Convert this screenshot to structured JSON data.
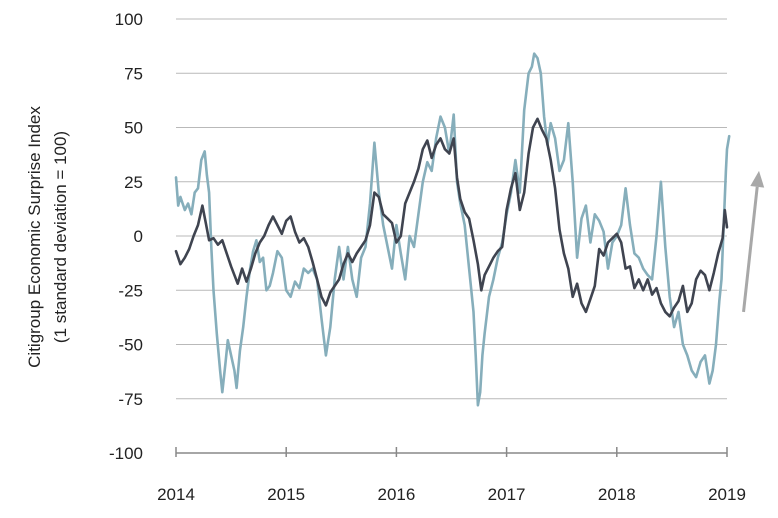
{
  "chart_data": {
    "type": "line",
    "ylabel_line1": "Citigroup Economic Surprise Index",
    "ylabel_line2": "(1 standard deviation = 100)",
    "ylim": [
      -100,
      100
    ],
    "xlim": [
      2014,
      2019
    ],
    "y_ticks": [
      {
        "v": 100,
        "label": "100"
      },
      {
        "v": 75,
        "label": "75"
      },
      {
        "v": 50,
        "label": "50"
      },
      {
        "v": 25,
        "label": "25"
      },
      {
        "v": 0,
        "label": "0"
      },
      {
        "v": -25,
        "label": "-25"
      },
      {
        "v": -50,
        "label": "-50"
      },
      {
        "v": -75,
        "label": "-75"
      },
      {
        "v": -100,
        "label": "-100"
      }
    ],
    "x_ticks": [
      {
        "v": 2014,
        "label": "2014"
      },
      {
        "v": 2015,
        "label": "2015"
      },
      {
        "v": 2016,
        "label": "2016"
      },
      {
        "v": 2017,
        "label": "2017"
      },
      {
        "v": 2018,
        "label": "2018"
      },
      {
        "v": 2019,
        "label": "2019"
      }
    ],
    "grid": "horizontal",
    "colors": {
      "series_dark": "#3f4450",
      "series_light": "#86aebb",
      "arrow": "#a8a8a8",
      "grid": "#b9b9b9",
      "axis": "#888888"
    },
    "arrow": {
      "from": [
        2019.15,
        -35
      ],
      "to": [
        2019.29,
        30
      ]
    },
    "series": [
      {
        "color": "#3f4450",
        "points": [
          [
            2014.0,
            -7
          ],
          [
            2014.04,
            -13
          ],
          [
            2014.08,
            -10
          ],
          [
            2014.12,
            -6
          ],
          [
            2014.16,
            0
          ],
          [
            2014.2,
            5
          ],
          [
            2014.24,
            14
          ],
          [
            2014.27,
            6
          ],
          [
            2014.3,
            -2
          ],
          [
            2014.34,
            -1
          ],
          [
            2014.38,
            -4
          ],
          [
            2014.42,
            -2
          ],
          [
            2014.46,
            -8
          ],
          [
            2014.5,
            -14
          ],
          [
            2014.53,
            -18
          ],
          [
            2014.56,
            -22
          ],
          [
            2014.6,
            -15
          ],
          [
            2014.64,
            -21
          ],
          [
            2014.68,
            -15
          ],
          [
            2014.72,
            -8
          ],
          [
            2014.76,
            -3
          ],
          [
            2014.8,
            0
          ],
          [
            2014.84,
            5
          ],
          [
            2014.88,
            9
          ],
          [
            2014.92,
            5
          ],
          [
            2014.96,
            1
          ],
          [
            2015.0,
            7
          ],
          [
            2015.04,
            9
          ],
          [
            2015.08,
            2
          ],
          [
            2015.12,
            -3
          ],
          [
            2015.16,
            -1
          ],
          [
            2015.2,
            -5
          ],
          [
            2015.24,
            -12
          ],
          [
            2015.28,
            -20
          ],
          [
            2015.32,
            -28
          ],
          [
            2015.36,
            -32
          ],
          [
            2015.4,
            -26
          ],
          [
            2015.44,
            -23
          ],
          [
            2015.48,
            -20
          ],
          [
            2015.52,
            -13
          ],
          [
            2015.56,
            -8
          ],
          [
            2015.6,
            -12
          ],
          [
            2015.64,
            -8
          ],
          [
            2015.68,
            -5
          ],
          [
            2015.72,
            -2
          ],
          [
            2015.76,
            5
          ],
          [
            2015.8,
            20
          ],
          [
            2015.84,
            18
          ],
          [
            2015.88,
            10
          ],
          [
            2015.92,
            8
          ],
          [
            2015.96,
            6
          ],
          [
            2016.0,
            -3
          ],
          [
            2016.04,
            0
          ],
          [
            2016.08,
            15
          ],
          [
            2016.12,
            20
          ],
          [
            2016.16,
            25
          ],
          [
            2016.2,
            31
          ],
          [
            2016.24,
            40
          ],
          [
            2016.28,
            44
          ],
          [
            2016.32,
            36
          ],
          [
            2016.36,
            42
          ],
          [
            2016.4,
            45
          ],
          [
            2016.44,
            40
          ],
          [
            2016.48,
            38
          ],
          [
            2016.52,
            45
          ],
          [
            2016.55,
            27
          ],
          [
            2016.58,
            17
          ],
          [
            2016.62,
            11
          ],
          [
            2016.66,
            8
          ],
          [
            2016.7,
            -2
          ],
          [
            2016.74,
            -13
          ],
          [
            2016.77,
            -25
          ],
          [
            2016.8,
            -18
          ],
          [
            2016.84,
            -14
          ],
          [
            2016.88,
            -10
          ],
          [
            2016.92,
            -7
          ],
          [
            2016.96,
            -5
          ],
          [
            2017.0,
            12
          ],
          [
            2017.04,
            22
          ],
          [
            2017.08,
            29
          ],
          [
            2017.12,
            12
          ],
          [
            2017.16,
            20
          ],
          [
            2017.2,
            38
          ],
          [
            2017.24,
            50
          ],
          [
            2017.28,
            54
          ],
          [
            2017.32,
            49
          ],
          [
            2017.36,
            45
          ],
          [
            2017.4,
            35
          ],
          [
            2017.44,
            22
          ],
          [
            2017.48,
            3
          ],
          [
            2017.52,
            -8
          ],
          [
            2017.56,
            -15
          ],
          [
            2017.6,
            -28
          ],
          [
            2017.64,
            -22
          ],
          [
            2017.68,
            -31
          ],
          [
            2017.72,
            -35
          ],
          [
            2017.76,
            -29
          ],
          [
            2017.8,
            -23
          ],
          [
            2017.84,
            -6
          ],
          [
            2017.88,
            -9
          ],
          [
            2017.92,
            -3
          ],
          [
            2017.96,
            -1
          ],
          [
            2018.0,
            1
          ],
          [
            2018.04,
            -3
          ],
          [
            2018.08,
            -15
          ],
          [
            2018.12,
            -14
          ],
          [
            2018.16,
            -24
          ],
          [
            2018.2,
            -20
          ],
          [
            2018.24,
            -25
          ],
          [
            2018.28,
            -20
          ],
          [
            2018.32,
            -27
          ],
          [
            2018.36,
            -24
          ],
          [
            2018.4,
            -31
          ],
          [
            2018.44,
            -35
          ],
          [
            2018.48,
            -37
          ],
          [
            2018.52,
            -33
          ],
          [
            2018.56,
            -30
          ],
          [
            2018.6,
            -23
          ],
          [
            2018.64,
            -35
          ],
          [
            2018.68,
            -31
          ],
          [
            2018.72,
            -20
          ],
          [
            2018.76,
            -16
          ],
          [
            2018.8,
            -18
          ],
          [
            2018.84,
            -25
          ],
          [
            2018.88,
            -17
          ],
          [
            2018.92,
            -8
          ],
          [
            2018.96,
            -1
          ],
          [
            2018.98,
            12
          ],
          [
            2019.0,
            4
          ]
        ]
      },
      {
        "color": "#86aebb",
        "points": [
          [
            2014.0,
            27
          ],
          [
            2014.02,
            14
          ],
          [
            2014.04,
            18
          ],
          [
            2014.08,
            12
          ],
          [
            2014.11,
            15
          ],
          [
            2014.14,
            10
          ],
          [
            2014.17,
            20
          ],
          [
            2014.2,
            22
          ],
          [
            2014.23,
            35
          ],
          [
            2014.26,
            39
          ],
          [
            2014.28,
            28
          ],
          [
            2014.3,
            20
          ],
          [
            2014.32,
            -5
          ],
          [
            2014.34,
            -25
          ],
          [
            2014.37,
            -45
          ],
          [
            2014.4,
            -62
          ],
          [
            2014.42,
            -72
          ],
          [
            2014.45,
            -58
          ],
          [
            2014.47,
            -48
          ],
          [
            2014.5,
            -55
          ],
          [
            2014.53,
            -62
          ],
          [
            2014.55,
            -70
          ],
          [
            2014.58,
            -53
          ],
          [
            2014.61,
            -42
          ],
          [
            2014.64,
            -28
          ],
          [
            2014.67,
            -16
          ],
          [
            2014.7,
            -7
          ],
          [
            2014.73,
            -2
          ],
          [
            2014.76,
            -12
          ],
          [
            2014.79,
            -10
          ],
          [
            2014.82,
            -25
          ],
          [
            2014.85,
            -23
          ],
          [
            2014.88,
            -17
          ],
          [
            2014.92,
            -7
          ],
          [
            2014.96,
            -10
          ],
          [
            2015.0,
            -25
          ],
          [
            2015.04,
            -28
          ],
          [
            2015.08,
            -21
          ],
          [
            2015.12,
            -24
          ],
          [
            2015.16,
            -15
          ],
          [
            2015.2,
            -17
          ],
          [
            2015.24,
            -15
          ],
          [
            2015.28,
            -20
          ],
          [
            2015.32,
            -38
          ],
          [
            2015.36,
            -55
          ],
          [
            2015.4,
            -42
          ],
          [
            2015.44,
            -20
          ],
          [
            2015.48,
            -5
          ],
          [
            2015.52,
            -20
          ],
          [
            2015.56,
            -5
          ],
          [
            2015.6,
            -20
          ],
          [
            2015.64,
            -28
          ],
          [
            2015.68,
            -10
          ],
          [
            2015.72,
            -5
          ],
          [
            2015.76,
            15
          ],
          [
            2015.8,
            43
          ],
          [
            2015.84,
            20
          ],
          [
            2015.88,
            5
          ],
          [
            2015.92,
            -5
          ],
          [
            2015.96,
            -15
          ],
          [
            2016.0,
            5
          ],
          [
            2016.04,
            -8
          ],
          [
            2016.08,
            -20
          ],
          [
            2016.12,
            0
          ],
          [
            2016.16,
            -5
          ],
          [
            2016.2,
            10
          ],
          [
            2016.24,
            25
          ],
          [
            2016.28,
            34
          ],
          [
            2016.32,
            30
          ],
          [
            2016.36,
            45
          ],
          [
            2016.4,
            55
          ],
          [
            2016.44,
            50
          ],
          [
            2016.48,
            38
          ],
          [
            2016.52,
            56
          ],
          [
            2016.55,
            25
          ],
          [
            2016.58,
            15
          ],
          [
            2016.62,
            5
          ],
          [
            2016.66,
            -15
          ],
          [
            2016.7,
            -35
          ],
          [
            2016.72,
            -55
          ],
          [
            2016.74,
            -78
          ],
          [
            2016.76,
            -72
          ],
          [
            2016.78,
            -55
          ],
          [
            2016.8,
            -45
          ],
          [
            2016.84,
            -28
          ],
          [
            2016.88,
            -20
          ],
          [
            2016.92,
            -10
          ],
          [
            2016.96,
            -3
          ],
          [
            2017.0,
            10
          ],
          [
            2017.04,
            20
          ],
          [
            2017.08,
            35
          ],
          [
            2017.12,
            20
          ],
          [
            2017.16,
            58
          ],
          [
            2017.2,
            75
          ],
          [
            2017.23,
            78
          ],
          [
            2017.25,
            84
          ],
          [
            2017.28,
            82
          ],
          [
            2017.31,
            75
          ],
          [
            2017.34,
            55
          ],
          [
            2017.37,
            42
          ],
          [
            2017.4,
            52
          ],
          [
            2017.44,
            45
          ],
          [
            2017.48,
            30
          ],
          [
            2017.52,
            35
          ],
          [
            2017.56,
            52
          ],
          [
            2017.6,
            25
          ],
          [
            2017.64,
            -10
          ],
          [
            2017.68,
            8
          ],
          [
            2017.72,
            14
          ],
          [
            2017.76,
            -3
          ],
          [
            2017.8,
            10
          ],
          [
            2017.84,
            7
          ],
          [
            2017.88,
            2
          ],
          [
            2017.92,
            -15
          ],
          [
            2017.96,
            -3
          ],
          [
            2018.0,
            0
          ],
          [
            2018.04,
            5
          ],
          [
            2018.08,
            22
          ],
          [
            2018.12,
            5
          ],
          [
            2018.16,
            -8
          ],
          [
            2018.2,
            -10
          ],
          [
            2018.24,
            -15
          ],
          [
            2018.28,
            -18
          ],
          [
            2018.32,
            -20
          ],
          [
            2018.36,
            0
          ],
          [
            2018.4,
            25
          ],
          [
            2018.44,
            -5
          ],
          [
            2018.48,
            -28
          ],
          [
            2018.52,
            -42
          ],
          [
            2018.56,
            -35
          ],
          [
            2018.6,
            -50
          ],
          [
            2018.64,
            -55
          ],
          [
            2018.68,
            -62
          ],
          [
            2018.72,
            -65
          ],
          [
            2018.76,
            -58
          ],
          [
            2018.8,
            -55
          ],
          [
            2018.84,
            -68
          ],
          [
            2018.87,
            -62
          ],
          [
            2018.9,
            -50
          ],
          [
            2018.93,
            -30
          ],
          [
            2018.95,
            -20
          ],
          [
            2018.97,
            5
          ],
          [
            2018.99,
            30
          ],
          [
            2019.0,
            40
          ],
          [
            2019.02,
            46
          ]
        ]
      }
    ]
  }
}
